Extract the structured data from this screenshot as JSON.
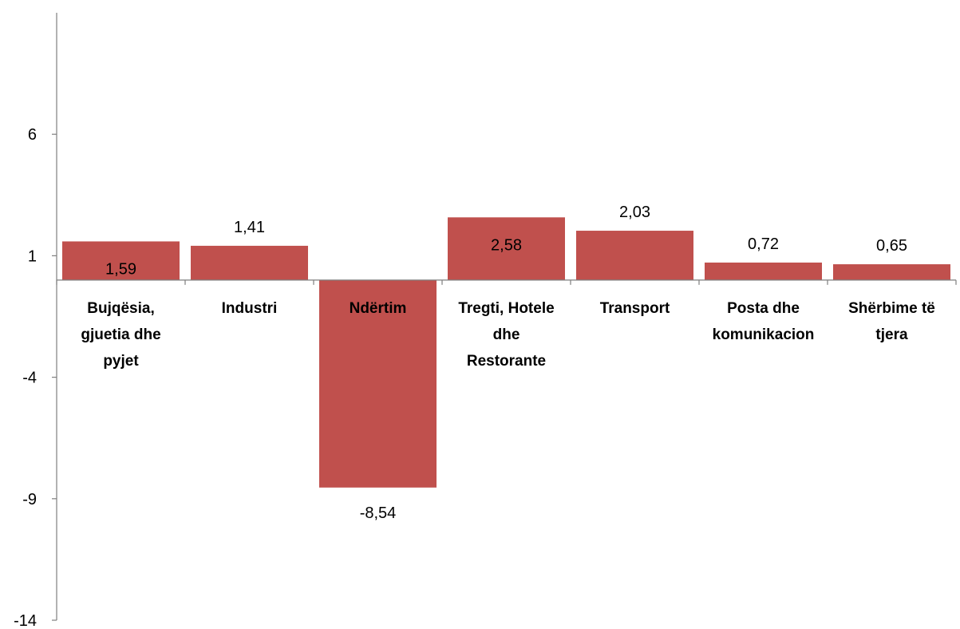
{
  "chart_data": {
    "type": "bar",
    "title": "",
    "xlabel": "",
    "ylabel": "",
    "categories": [
      [
        "Bujqësia,",
        "gjuetia dhe",
        "pyjet"
      ],
      [
        "Industri"
      ],
      [
        "Ndërtim"
      ],
      [
        "Tregti, Hotele",
        "dhe",
        "Restorante"
      ],
      [
        "Transport"
      ],
      [
        "Posta dhe",
        "komunikacion"
      ],
      [
        "Shërbime të",
        "tjera"
      ]
    ],
    "values": [
      1.59,
      1.41,
      -8.54,
      2.58,
      2.03,
      0.72,
      0.65
    ],
    "value_labels": [
      "1,59",
      "1,41",
      "-8,54",
      "2,58",
      "2,03",
      "0,72",
      "0,65"
    ],
    "ylim": [
      -14,
      11
    ],
    "yticks": [
      6,
      1,
      -4,
      -9,
      -14
    ],
    "ytick_labels": [
      "6",
      "1",
      "-4",
      "-9",
      "-14"
    ],
    "grid": false,
    "legend": "none",
    "bar_color": "#c0504d",
    "axis_color": "#7f7f7f"
  }
}
